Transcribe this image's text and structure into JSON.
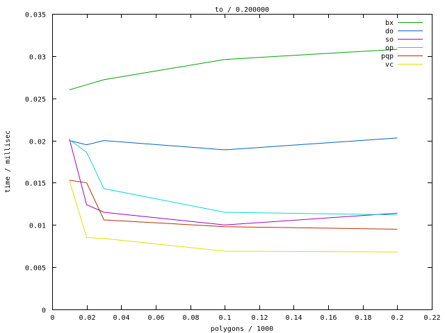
{
  "chart_data": {
    "type": "line",
    "title": "to / 0.200000",
    "xlabel": "polygons / 1000",
    "ylabel": "time / millisec",
    "xlim": [
      0,
      0.22
    ],
    "ylim": [
      0,
      0.035
    ],
    "xticks": [
      0,
      0.02,
      0.04,
      0.06,
      0.08,
      0.1,
      0.12,
      0.14,
      0.16,
      0.18,
      0.2,
      0.22
    ],
    "xtick_labels": [
      "0",
      "0.02",
      "0.04",
      "0.06",
      "0.08",
      "0.1",
      "0.12",
      "0.14",
      "0.16",
      "0.18",
      "0.2",
      "0.22"
    ],
    "yticks": [
      0,
      0.005,
      0.01,
      0.015,
      0.02,
      0.025,
      0.03,
      0.035
    ],
    "ytick_labels": [
      "0",
      "0.005",
      "0.01",
      "0.015",
      "0.02",
      "0.025",
      "0.03",
      "0.035"
    ],
    "grid": false,
    "legend_position": "top-right",
    "x": [
      0.01,
      0.02,
      0.03,
      0.1,
      0.2
    ],
    "series": [
      {
        "name": "bx",
        "color": "#00a000",
        "values": [
          0.026,
          0.0266,
          0.0272,
          0.0296,
          0.0308
        ]
      },
      {
        "name": "do",
        "color": "#0060c0",
        "values": [
          0.02,
          0.0195,
          0.02,
          0.0189,
          0.0203
        ]
      },
      {
        "name": "so",
        "color": "#a000c0",
        "values": [
          0.0202,
          0.0124,
          0.0115,
          0.01,
          0.0114
        ]
      },
      {
        "name": "op",
        "color": "#00d8d8",
        "values": [
          0.0201,
          0.0186,
          0.0143,
          0.0115,
          0.0112
        ]
      },
      {
        "name": "pqp",
        "color": "#b03000",
        "values": [
          0.0153,
          0.015,
          0.0106,
          0.0098,
          0.0095
        ]
      },
      {
        "name": "vc",
        "color": "#e0e000",
        "values": [
          0.0153,
          0.0085,
          0.0084,
          0.0069,
          0.0068
        ]
      }
    ]
  }
}
